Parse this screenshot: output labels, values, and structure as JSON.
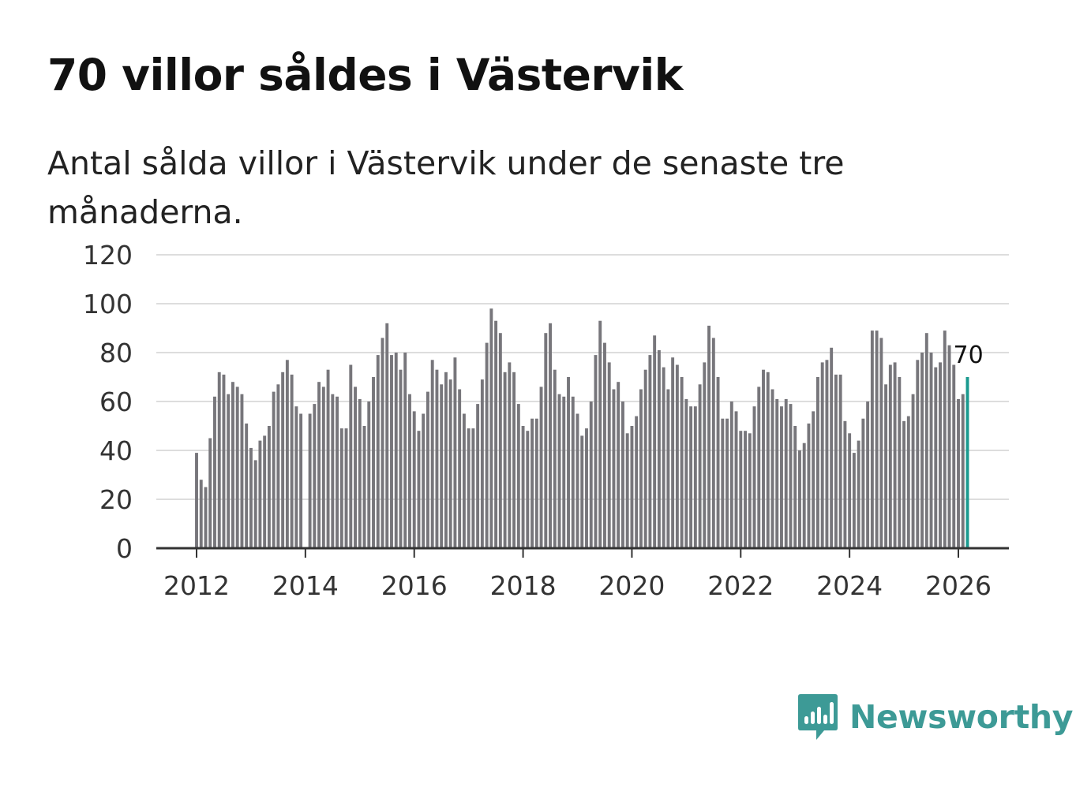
{
  "header": {
    "title": "70 villor såldes i Västervik",
    "subtitle": "Antal sålda villor i Västervik under de senaste tre månaderna."
  },
  "brand": {
    "name": "Newsworthy",
    "icon": "bar-chart-speech-bubble-icon",
    "color": "#3d9a96"
  },
  "colors": {
    "bar": "#77767b",
    "highlight": "#1a9a8f",
    "grid": "#dddddd",
    "axis": "#333333"
  },
  "chart_data": {
    "type": "bar",
    "title": "70 villor såldes i Västervik",
    "subtitle": "Antal sålda villor i Västervik under de senaste tre månaderna.",
    "xlabel": "",
    "ylabel": "",
    "ylim": [
      0,
      120
    ],
    "yticks": [
      0,
      20,
      40,
      60,
      80,
      100,
      120
    ],
    "xticks": [
      "2012",
      "2014",
      "2016",
      "2018",
      "2020",
      "2022",
      "2024",
      "2026"
    ],
    "x_start": "2012-01",
    "x_end": "2026-03",
    "grid": true,
    "highlight_label": "70",
    "values": [
      39,
      28,
      25,
      45,
      62,
      72,
      71,
      63,
      68,
      66,
      63,
      51,
      41,
      36,
      44,
      46,
      50,
      64,
      67,
      72,
      77,
      71,
      58,
      55,
      null,
      55,
      59,
      68,
      66,
      73,
      63,
      62,
      49,
      49,
      75,
      66,
      61,
      50,
      60,
      70,
      79,
      86,
      92,
      79,
      80,
      73,
      80,
      63,
      56,
      48,
      55,
      64,
      77,
      73,
      67,
      72,
      69,
      78,
      65,
      55,
      49,
      49,
      59,
      69,
      84,
      98,
      93,
      88,
      72,
      76,
      72,
      59,
      50,
      48,
      53,
      53,
      66,
      88,
      92,
      73,
      63,
      62,
      70,
      62,
      55,
      46,
      49,
      60,
      79,
      93,
      84,
      76,
      65,
      68,
      60,
      47,
      50,
      54,
      65,
      73,
      79,
      87,
      81,
      74,
      65,
      78,
      75,
      70,
      61,
      58,
      58,
      67,
      76,
      91,
      86,
      70,
      53,
      53,
      60,
      56,
      48,
      48,
      47,
      58,
      66,
      73,
      72,
      65,
      61,
      58,
      61,
      59,
      50,
      40,
      43,
      51,
      56,
      70,
      76,
      77,
      82,
      71,
      71,
      52,
      47,
      39,
      44,
      53,
      60,
      89,
      89,
      86,
      67,
      75,
      76,
      70,
      52,
      54,
      63,
      77,
      80,
      88,
      80,
      74,
      76,
      89,
      83,
      75,
      61,
      63,
      70
    ]
  }
}
